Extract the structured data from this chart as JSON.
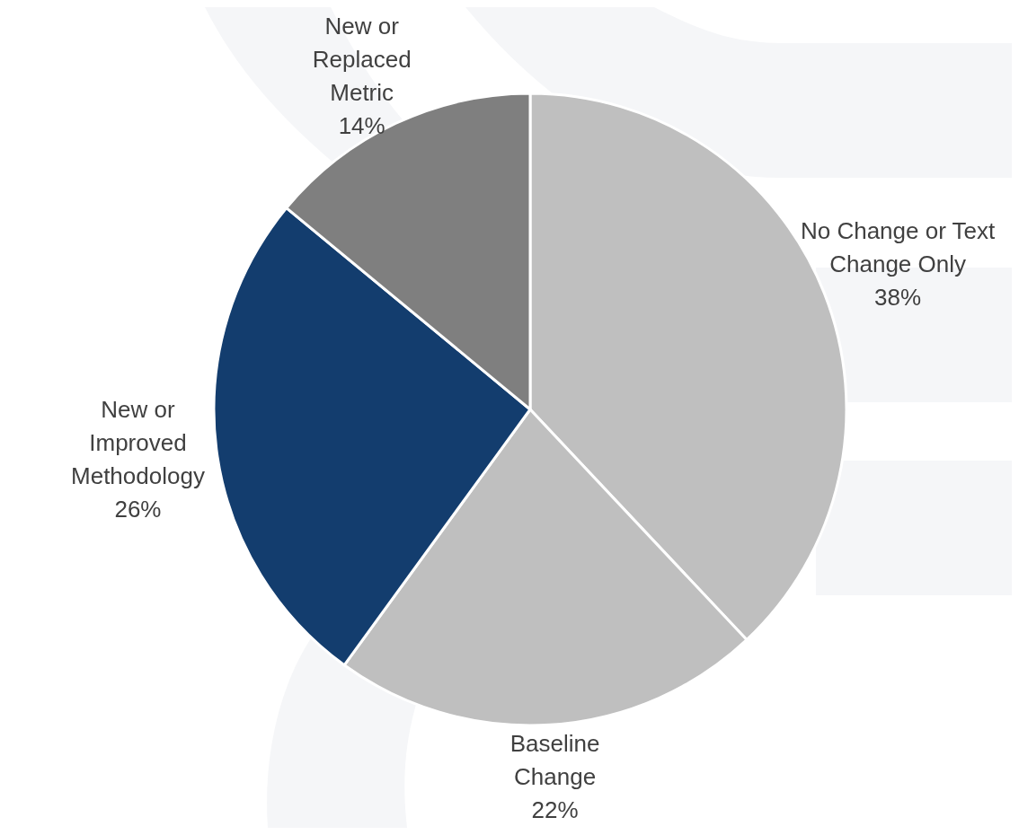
{
  "chart_data": {
    "type": "pie",
    "categories": [
      "No Change or Text Change Only",
      "Baseline Change",
      "New or Improved Methodology",
      "New or Replaced Metric"
    ],
    "values": [
      38,
      22,
      26,
      14
    ],
    "colors": [
      "#bfbfbf",
      "#bfbfbf",
      "#133d6e",
      "#7f7f7f"
    ],
    "value_labels": [
      "38%",
      "22%",
      "26%",
      "14%"
    ]
  }
}
